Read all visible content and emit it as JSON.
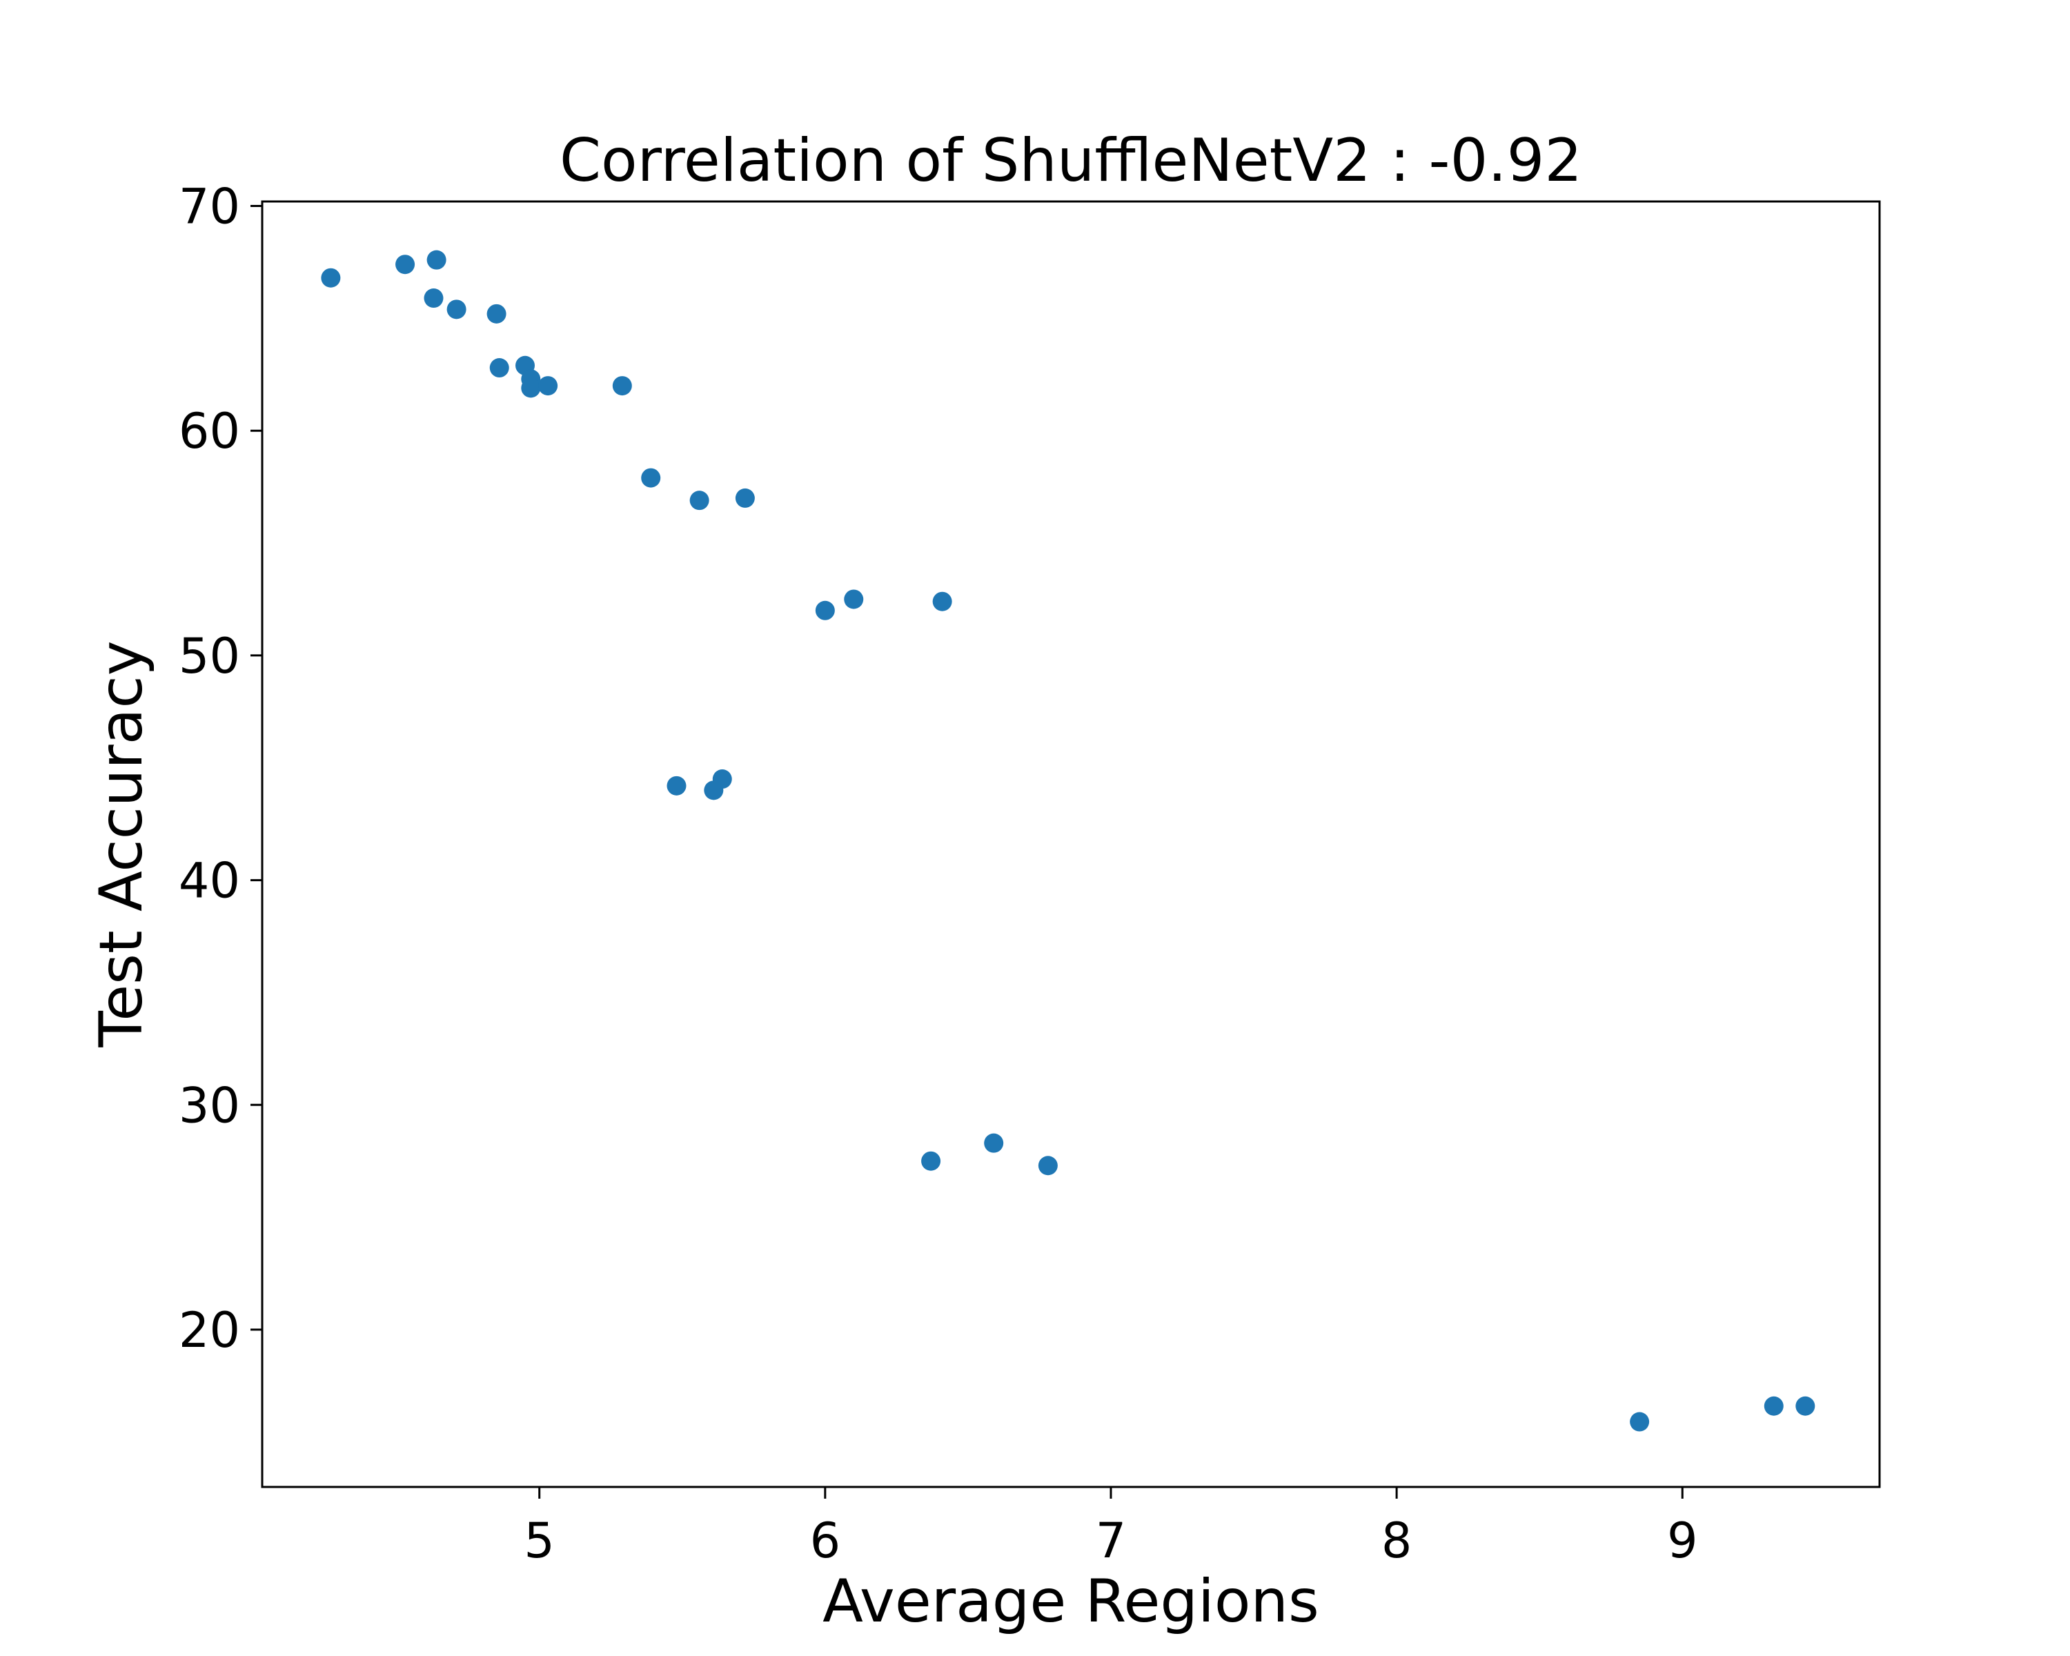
{
  "chart_data": {
    "type": "scatter",
    "title": "Correlation of ShuffleNetV2 : -0.92",
    "xlabel": "Average Regions",
    "ylabel": "Test Accuracy",
    "xlim": [
      4.03,
      9.69
    ],
    "ylim": [
      13.0,
      70.2
    ],
    "xticks": [
      5,
      6,
      7,
      8,
      9
    ],
    "yticks": [
      20,
      30,
      40,
      50,
      60,
      70
    ],
    "grid": false,
    "color": "#1f77b4",
    "series": [
      {
        "points": [
          {
            "x": 4.27,
            "y": 66.8
          },
          {
            "x": 4.53,
            "y": 67.4
          },
          {
            "x": 4.64,
            "y": 67.6
          },
          {
            "x": 4.63,
            "y": 65.9
          },
          {
            "x": 4.71,
            "y": 65.4
          },
          {
            "x": 4.85,
            "y": 65.2
          },
          {
            "x": 4.86,
            "y": 62.8
          },
          {
            "x": 4.95,
            "y": 62.9
          },
          {
            "x": 4.97,
            "y": 62.3
          },
          {
            "x": 4.97,
            "y": 61.9
          },
          {
            "x": 5.03,
            "y": 62.0
          },
          {
            "x": 5.29,
            "y": 62.0
          },
          {
            "x": 5.39,
            "y": 57.9
          },
          {
            "x": 5.56,
            "y": 56.9
          },
          {
            "x": 5.72,
            "y": 57.0
          },
          {
            "x": 6.0,
            "y": 52.0
          },
          {
            "x": 6.1,
            "y": 52.5
          },
          {
            "x": 6.41,
            "y": 52.4
          },
          {
            "x": 5.48,
            "y": 44.2
          },
          {
            "x": 5.61,
            "y": 44.0
          },
          {
            "x": 5.64,
            "y": 44.5
          },
          {
            "x": 6.37,
            "y": 27.5
          },
          {
            "x": 6.59,
            "y": 28.3
          },
          {
            "x": 6.78,
            "y": 27.3
          },
          {
            "x": 8.85,
            "y": 15.9
          },
          {
            "x": 9.32,
            "y": 16.6
          },
          {
            "x": 9.43,
            "y": 16.6
          }
        ]
      }
    ]
  }
}
